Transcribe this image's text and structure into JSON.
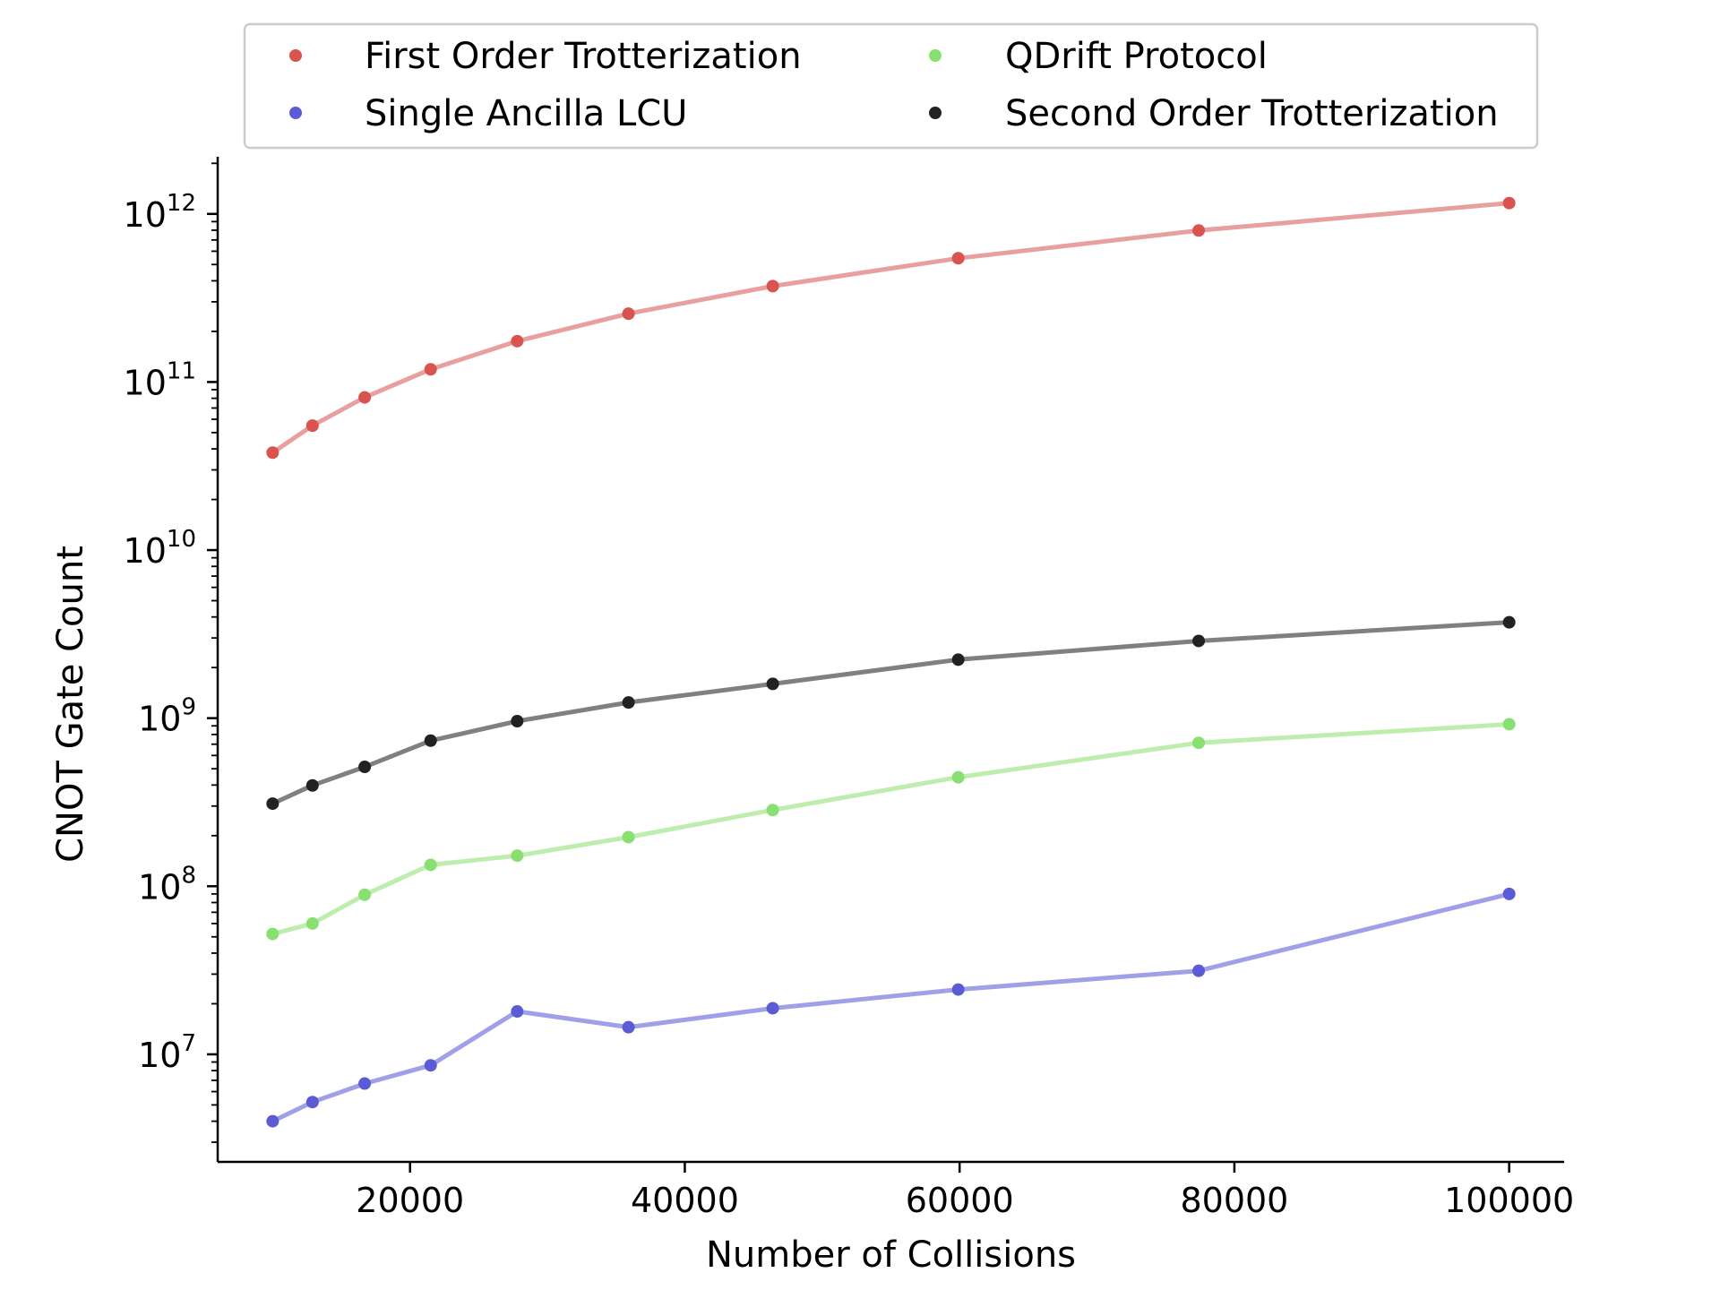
{
  "chart_data": {
    "type": "line",
    "xlabel": "Number of Collisions",
    "ylabel": "CNOT Gate Count",
    "yscale": "log",
    "xlim": [
      6000,
      104000
    ],
    "ylim_log10": [
      6.36,
      12.34
    ],
    "xticks": [
      {
        "value": 20000,
        "label": "20000"
      },
      {
        "value": 40000,
        "label": "40000"
      },
      {
        "value": 60000,
        "label": "60000"
      },
      {
        "value": 80000,
        "label": "80000"
      },
      {
        "value": 100000,
        "label": "100000"
      }
    ],
    "yticks": [
      {
        "exp": 7,
        "base": "10",
        "sup": "7"
      },
      {
        "exp": 8,
        "base": "10",
        "sup": "8"
      },
      {
        "exp": 9,
        "base": "10",
        "sup": "9"
      },
      {
        "exp": 10,
        "base": "10",
        "sup": "10"
      },
      {
        "exp": 11,
        "base": "10",
        "sup": "11"
      },
      {
        "exp": 12,
        "base": "10",
        "sup": "12"
      }
    ],
    "grid": false,
    "legend_position": "top",
    "x": [
      10000,
      12900,
      16700,
      21500,
      27800,
      35900,
      46400,
      59900,
      77400,
      100000
    ],
    "series": [
      {
        "name": "First Order Trotterization",
        "color": "#d9534f",
        "line_color": "#e8a09e",
        "values": [
          38000000000,
          55000000000,
          81000000000,
          119000000000,
          175000000000,
          255000000000,
          372000000000,
          545000000000,
          797000000000,
          1160000000000
        ]
      },
      {
        "name": "Single Ancilla LCU",
        "color": "#5b5bd6",
        "line_color": "#a0a0e8",
        "values": [
          4000000,
          5200000,
          6700000,
          8600000,
          18000000,
          14500000,
          18800000,
          24300000,
          31400000,
          90000000
        ]
      },
      {
        "name": "QDrift Protocol",
        "color": "#88e070",
        "line_color": "#bdeeae",
        "values": [
          52000000,
          60000000,
          89000000,
          134000000,
          152000000,
          196000000,
          284000000,
          445000000,
          713000000,
          920000000
        ]
      },
      {
        "name": "Second Order Trotterization",
        "color": "#222222",
        "line_color": "#808080",
        "values": [
          310000000,
          398000000,
          513000000,
          735000000,
          960000000,
          1240000000,
          1600000000,
          2230000000,
          2880000000,
          3720000000
        ]
      }
    ]
  }
}
